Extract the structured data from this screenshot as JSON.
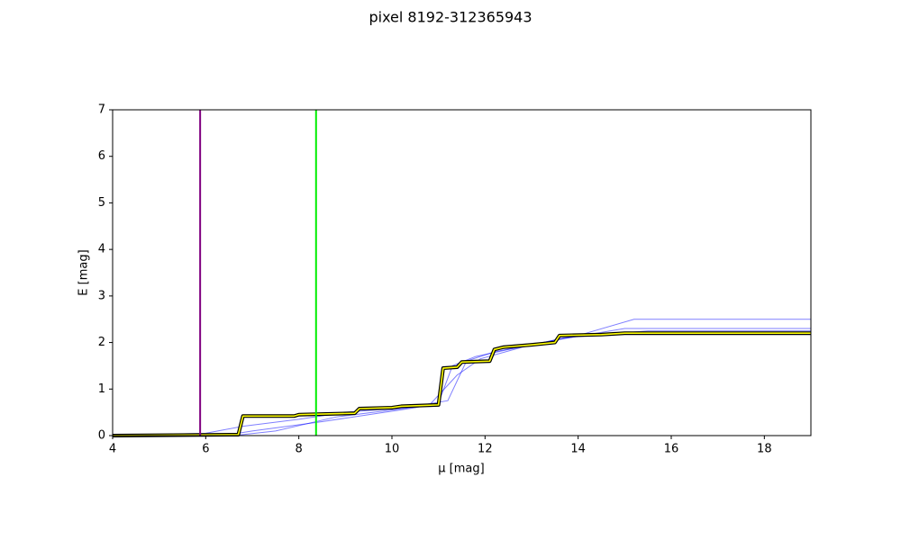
{
  "chart_data": {
    "type": "line",
    "title": "pixel 8192-312365943",
    "x_label": "μ [mag]",
    "y_label": "E [mag]",
    "xlim": [
      4,
      19
    ],
    "ylim": [
      0,
      7
    ],
    "xticks": [
      4,
      6,
      8,
      10,
      12,
      14,
      16,
      18
    ],
    "yticks": [
      0,
      1,
      2,
      3,
      4,
      5,
      6,
      7
    ],
    "vlines": [
      {
        "x": 5.88,
        "color": "#800080"
      },
      {
        "x": 8.37,
        "color": "#00ee00"
      }
    ],
    "series": [
      {
        "color": "#0000ff",
        "style": "sample",
        "x": [
          4,
          6.5,
          7.0,
          8.5,
          9.5,
          10.5,
          11.0,
          11.3,
          11.8,
          12.5,
          13.5,
          15.0,
          19
        ],
        "values": [
          0.0,
          0.02,
          0.1,
          0.3,
          0.45,
          0.6,
          0.7,
          1.5,
          1.7,
          1.85,
          2.05,
          2.3,
          2.3
        ]
      },
      {
        "color": "#0000ff",
        "style": "sample",
        "x": [
          4,
          6.0,
          6.8,
          8.0,
          9.0,
          10.3,
          11.2,
          11.6,
          12.2,
          13.0,
          14.0,
          15.2,
          19
        ],
        "values": [
          0.0,
          0.05,
          0.2,
          0.35,
          0.5,
          0.6,
          0.75,
          1.6,
          1.8,
          1.95,
          2.15,
          2.5,
          2.5
        ]
      },
      {
        "color": "#0000ff",
        "style": "sample",
        "x": [
          4,
          6.6,
          7.5,
          8.8,
          10.0,
          10.8,
          11.4,
          11.9,
          12.8,
          13.7,
          15.5,
          19
        ],
        "values": [
          0.0,
          0.0,
          0.1,
          0.4,
          0.55,
          0.65,
          1.3,
          1.65,
          1.9,
          2.1,
          2.25,
          2.25
        ]
      },
      {
        "color": "#ffff00",
        "style": "best",
        "x": [
          4,
          6.7,
          6.8,
          7.9,
          8.0,
          9.2,
          9.3,
          10.0,
          10.2,
          11.0,
          11.1,
          11.4,
          11.5,
          12.1,
          12.2,
          12.4,
          13.0,
          13.5,
          13.6,
          14.5,
          15.0,
          16.0,
          19
        ],
        "values": [
          0.0,
          0.02,
          0.42,
          0.42,
          0.45,
          0.48,
          0.58,
          0.6,
          0.63,
          0.66,
          1.45,
          1.47,
          1.58,
          1.6,
          1.85,
          1.9,
          1.95,
          2.0,
          2.15,
          2.17,
          2.2,
          2.2,
          2.2
        ]
      }
    ]
  }
}
